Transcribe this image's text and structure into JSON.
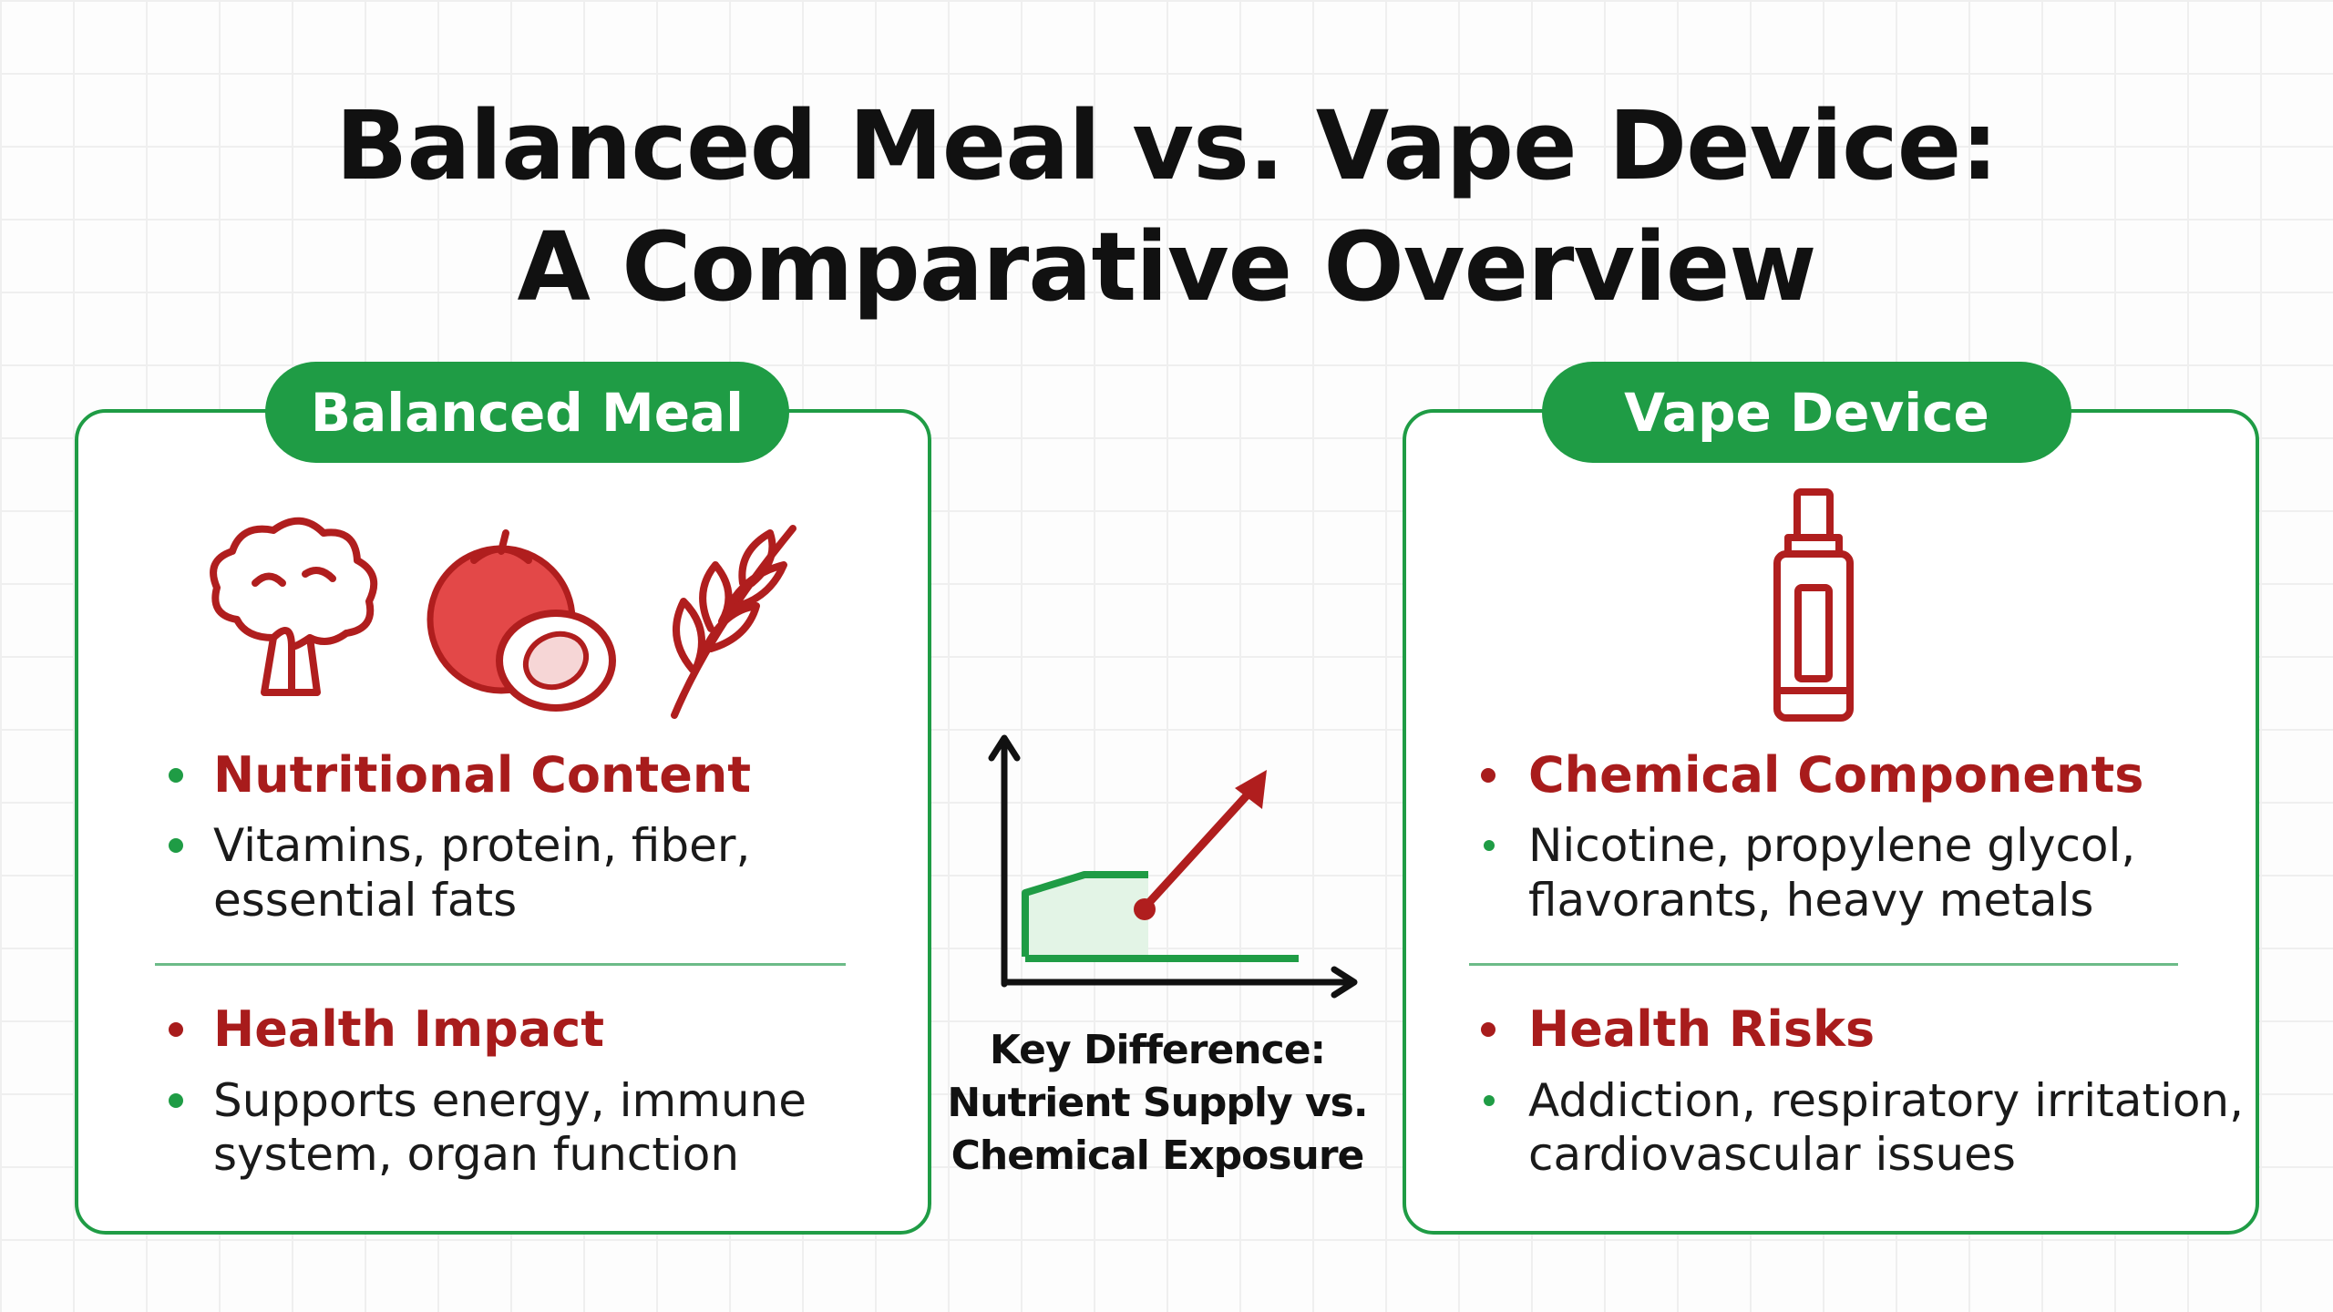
{
  "header": {
    "title": [
      "Balanced Meal vs. Vape Device:",
      "A Comparative Overview"
    ]
  },
  "left_panel": {
    "label": "Balanced Meal",
    "sections": [
      {
        "heading": "Nutritional Content",
        "body": [
          "Vitamins, protein, fiber,",
          "essential fats"
        ]
      },
      {
        "heading": "Health Impact",
        "body": [
          "Supports energy, immune",
          "system, organ function"
        ]
      }
    ]
  },
  "center": {
    "caption": [
      "Key Difference:",
      "Nutrient Supply vs.",
      "Chemical Exposure"
    ]
  },
  "right_panel": {
    "label": "Vape Device",
    "sections": [
      {
        "heading": "Chemical Components",
        "body": [
          "Nicotine, propylene glycol,",
          "flavorants, heavy metals"
        ]
      },
      {
        "heading": "Health Risks",
        "body": [
          "Addiction, respiratory irritation,",
          "cardiovascular issues"
        ]
      }
    ]
  }
}
